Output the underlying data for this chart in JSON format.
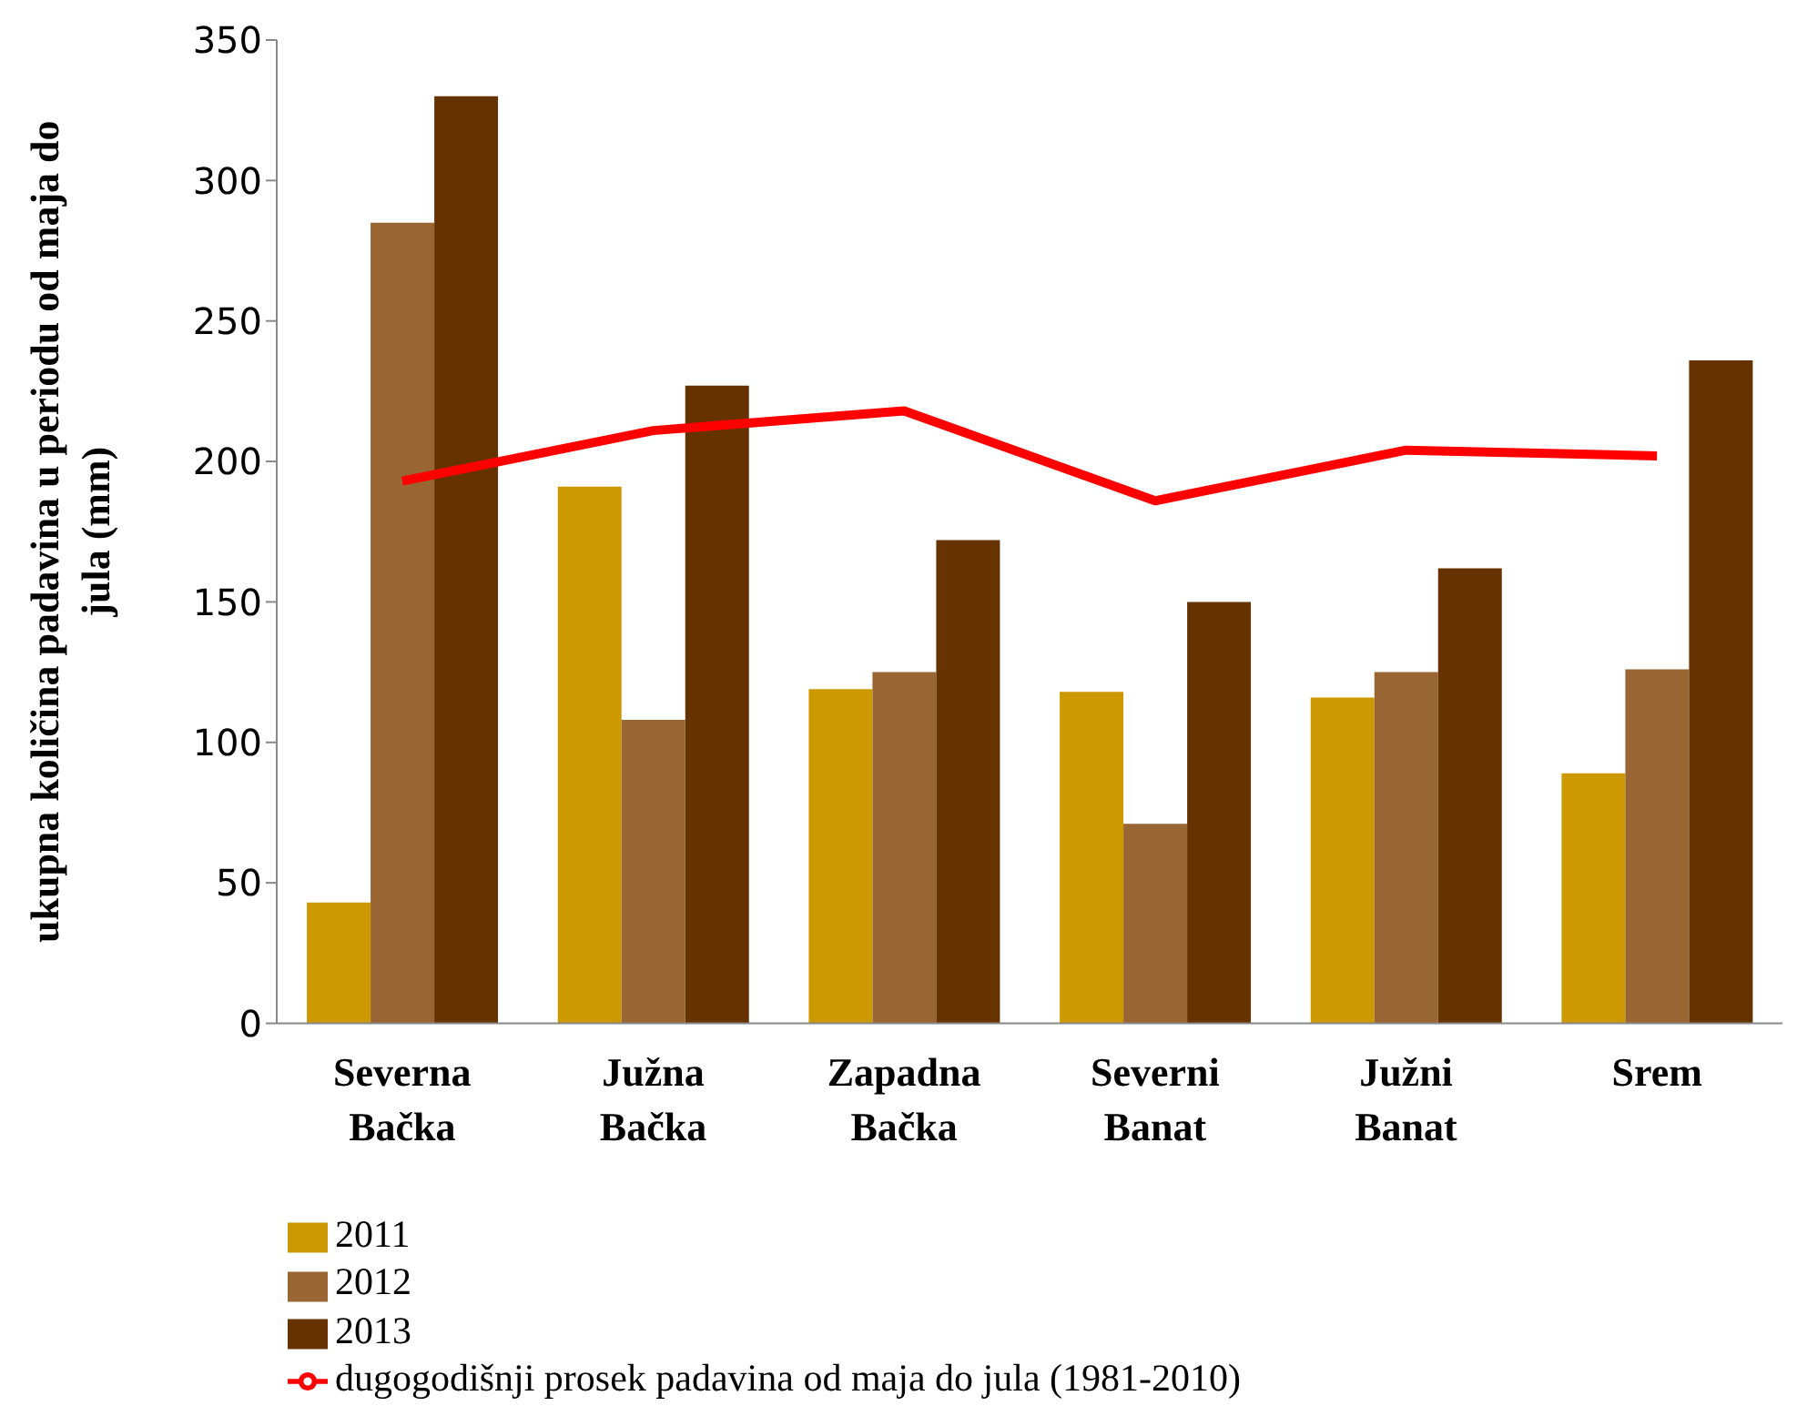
{
  "chart_data": {
    "type": "bar",
    "ylabel": "ukupna količina padavina u periodu od maja do jula (mm)",
    "categories": [
      "Severna Bačka",
      "Južna Bačka",
      "Zapadna Bačka",
      "Severni Banat",
      "Južni Banat",
      "Srem"
    ],
    "series": [
      {
        "name": "2011",
        "color": "#cc9900",
        "values": [
          43,
          191,
          119,
          118,
          116,
          89
        ]
      },
      {
        "name": "2012",
        "color": "#996633",
        "values": [
          285,
          108,
          125,
          71,
          125,
          126
        ]
      },
      {
        "name": "2013",
        "color": "#663300",
        "values": [
          330,
          227,
          172,
          150,
          162,
          236
        ]
      },
      {
        "name": "dugogodišnji prosek padavina od maja do jula (1981-2010)",
        "type": "line",
        "color": "#ff0000",
        "values": [
          193,
          211,
          218,
          186,
          204,
          202
        ],
        "marker": "none"
      }
    ],
    "ylim": [
      0,
      350
    ],
    "yticks": [
      0,
      50,
      100,
      150,
      200,
      250,
      300,
      350
    ],
    "grid": false,
    "legend": "bottom"
  }
}
